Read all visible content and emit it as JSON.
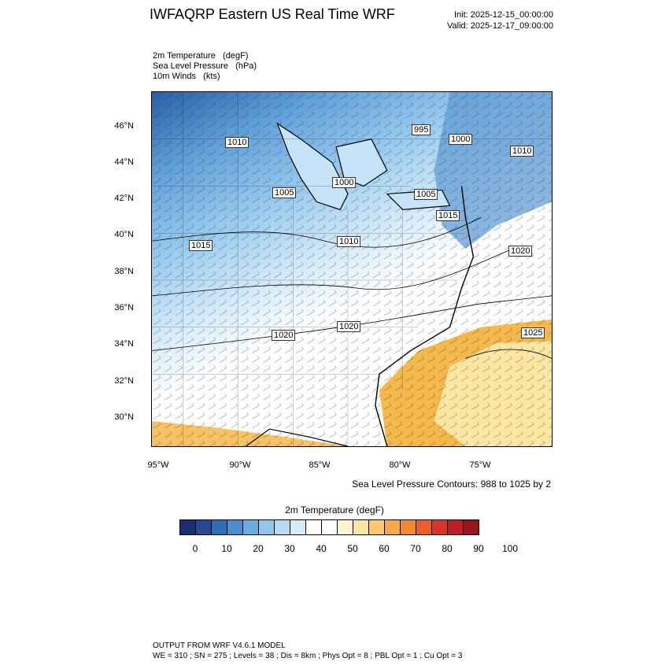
{
  "header": {
    "title": "IWFAQRP Eastern US Real Time WRF",
    "init": "Init: 2025-12-15_00:00:00",
    "valid": "Valid: 2025-12-17_09:00:00"
  },
  "fields": [
    "2m Temperature   (degF)",
    "Sea Level Pressure   (hPa)",
    "10m Winds   (kts)"
  ],
  "map": {
    "lat_labels": [
      "46°N",
      "44°N",
      "42°N",
      "40°N",
      "38°N",
      "36°N",
      "34°N",
      "32°N",
      "30°N"
    ],
    "lon_labels": [
      "95°W",
      "90°W",
      "85°W",
      "80°W",
      "75°W"
    ],
    "pressure_labels": [
      "1010",
      "1005",
      "995",
      "1000",
      "1010",
      "1005",
      "1000",
      "1015",
      "1010",
      "1015",
      "1020",
      "1020",
      "1020",
      "1025"
    ],
    "colors": {
      "cold": "#2a5fa8",
      "mid": "#9ccdf0",
      "neutral": "#ffffff",
      "warm": "#f5b84a"
    }
  },
  "contour_note": "Sea Level Pressure Contours: 988 to 1025 by 2",
  "colorbar": {
    "title": "2m Temperature  (degF)",
    "labels": [
      "0",
      "10",
      "20",
      "30",
      "40",
      "50",
      "60",
      "70",
      "80",
      "90",
      "100"
    ],
    "colors": [
      "#1a2f6e",
      "#234a92",
      "#2f6db5",
      "#4a8fcc",
      "#67aee0",
      "#8ec8ef",
      "#b3dcf6",
      "#d6ecfb",
      "#ffffff",
      "#ffffff",
      "#fff4d2",
      "#fde5a3",
      "#fbc96b",
      "#f6aa45",
      "#f1892f",
      "#e95e2a",
      "#d9332a",
      "#bd1e24",
      "#9a151b"
    ]
  },
  "footer": {
    "line1": "OUTPUT FROM WRF V4.6.1 MODEL",
    "line2": "WE = 310 ; SN = 275 ; Levels = 38 ; Dis = 8km ; Phys Opt = 8 ; PBL Opt = 1 ; Cu Opt = 3"
  }
}
